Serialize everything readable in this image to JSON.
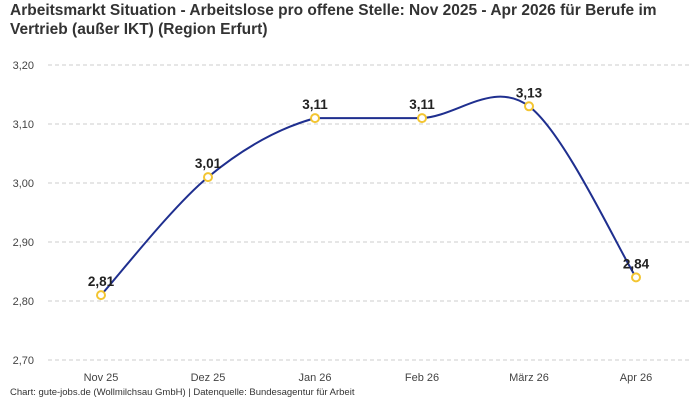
{
  "title": "Arbeitsmarkt Situation - Arbeitslose pro offene Stelle: Nov 2025 - Apr 2026 für Berufe im Vertrieb (außer IKT) (Region Erfurt)",
  "footer": "Chart: gute-jobs.de (Wollmilchsau GmbH) | Datenquelle: Bundesagentur für Arbeit",
  "colors": {
    "line": "#1f2f8f",
    "marker": "#f3c531",
    "grid": "#cccccc"
  },
  "chart_data": {
    "type": "line",
    "title": "Arbeitsmarkt Situation - Arbeitslose pro offene Stelle: Nov 2025 - Apr 2026 für Berufe im Vertrieb (außer IKT) (Region Erfurt)",
    "categories": [
      "Nov 25",
      "Dez 25",
      "Jan 26",
      "Feb 26",
      "März 26",
      "Apr 26"
    ],
    "values": [
      2.81,
      3.01,
      3.11,
      3.11,
      3.13,
      2.84
    ],
    "value_labels": [
      "2,81",
      "3,01",
      "3,11",
      "3,11",
      "3,13",
      "2,84"
    ],
    "yticks": [
      "2,70",
      "2,80",
      "2,90",
      "3,00",
      "3,10",
      "3,20"
    ],
    "ytick_values": [
      2.7,
      2.8,
      2.9,
      3.0,
      3.1,
      3.2
    ],
    "ylim": [
      2.7,
      3.2
    ],
    "grid": true,
    "legend": "none",
    "smooth": true
  }
}
